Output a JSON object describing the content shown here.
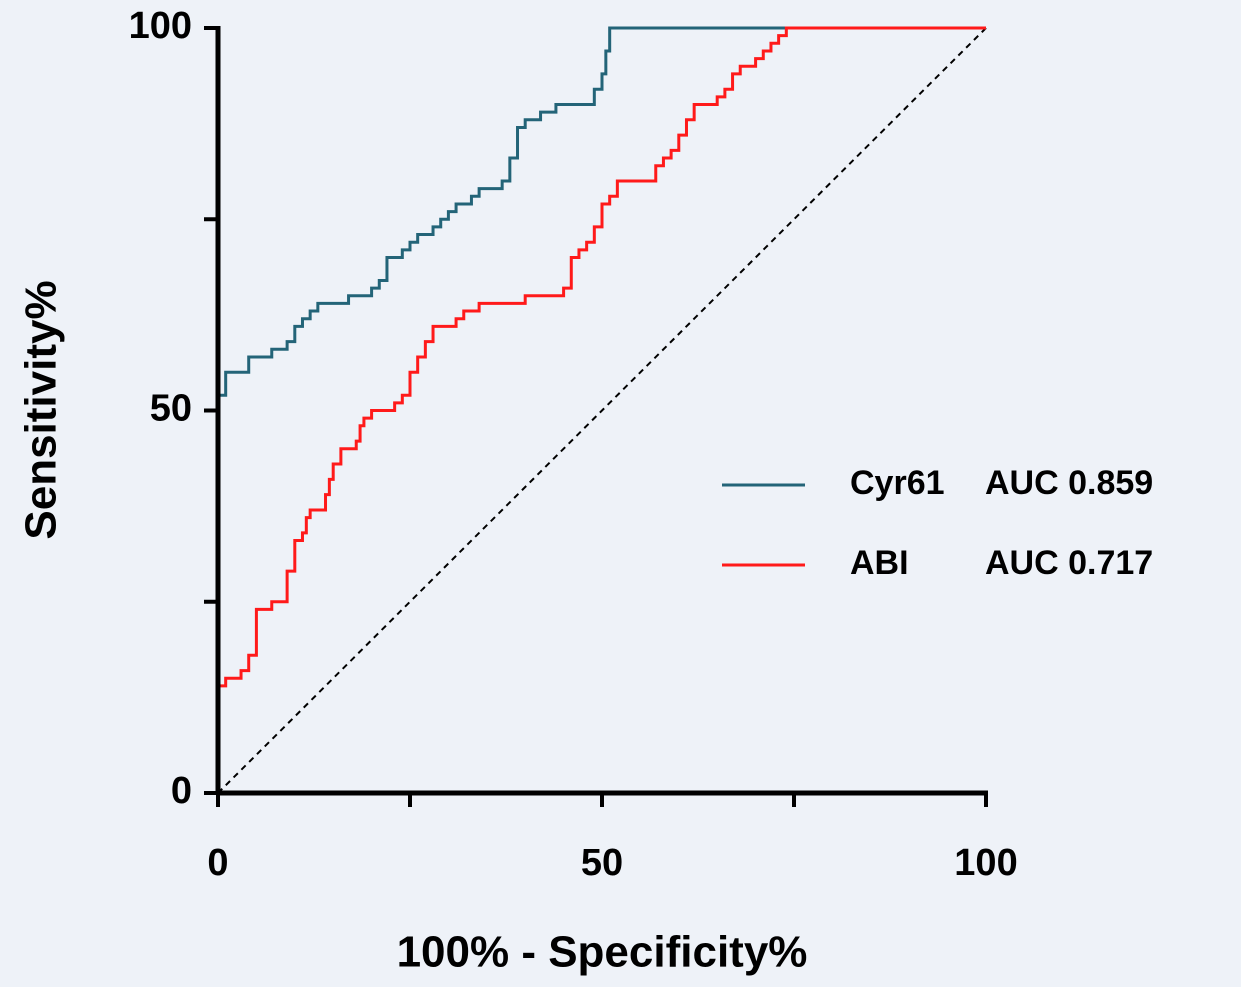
{
  "chart_data": {
    "type": "step-line",
    "x_label": "100% - Specificity%",
    "y_label": "Sensitivity%",
    "xlim": [
      0,
      100
    ],
    "ylim": [
      0,
      100
    ],
    "xticks": [
      0,
      50,
      100
    ],
    "yticks": [
      0,
      50,
      100
    ],
    "x_minor_ticks": [
      25,
      75
    ],
    "y_minor_ticks": [
      25,
      75
    ],
    "reference_line": true,
    "series": [
      {
        "name": "Cyr61",
        "annotation": "AUC 0.859",
        "color": "#236478",
        "x": [
          0,
          0,
          1,
          1,
          4,
          4,
          7,
          7,
          9,
          9,
          10,
          10,
          11,
          11,
          12,
          12,
          13,
          13,
          17,
          17,
          20,
          20,
          21,
          21,
          22,
          22,
          24,
          24,
          25,
          25,
          26,
          26,
          28,
          28,
          29,
          29,
          30,
          30,
          31,
          31,
          33,
          33,
          34,
          34,
          37,
          37,
          38,
          38,
          39,
          39,
          40,
          40,
          42,
          42,
          44,
          44,
          49,
          49,
          50,
          50,
          50.5,
          50.5,
          51,
          51,
          53,
          100
        ],
        "y": [
          0,
          52,
          52,
          55,
          55,
          57,
          57,
          58,
          58,
          59,
          59,
          61,
          61,
          62,
          62,
          63,
          63,
          64,
          64,
          65,
          65,
          66,
          66,
          67,
          67,
          70,
          70,
          71,
          71,
          72,
          72,
          73,
          73,
          74,
          74,
          75,
          75,
          76,
          76,
          77,
          77,
          78,
          78,
          79,
          79,
          80,
          80,
          83,
          83,
          87,
          87,
          88,
          88,
          89,
          89,
          90,
          90,
          92,
          92,
          94,
          94,
          97,
          97,
          100,
          100,
          100
        ]
      },
      {
        "name": "ABI",
        "annotation": "AUC 0.717",
        "color": "#ff1a1a",
        "x": [
          0,
          0,
          1,
          1,
          3,
          3,
          4,
          4,
          5,
          5,
          7,
          7,
          9,
          9,
          10,
          10,
          11,
          11,
          11.5,
          11.5,
          12,
          12,
          14,
          14,
          14.5,
          14.5,
          15,
          15,
          16,
          16,
          18,
          18,
          18.5,
          18.5,
          19,
          19,
          20,
          20,
          23,
          23,
          24,
          24,
          25,
          25,
          26,
          26,
          27,
          27,
          28,
          28,
          31,
          31,
          32,
          32,
          34,
          34,
          40,
          40,
          45,
          45,
          46,
          46,
          47,
          47,
          48,
          48,
          49,
          49,
          50,
          50,
          51,
          51,
          52,
          52,
          57,
          57,
          58,
          58,
          59,
          59,
          60,
          60,
          61,
          61,
          62,
          62,
          65,
          65,
          66,
          66,
          67,
          67,
          68,
          68,
          70,
          70,
          71,
          71,
          72,
          72,
          73,
          73,
          74,
          74,
          76,
          100
        ],
        "y": [
          0,
          14,
          14,
          15,
          15,
          16,
          16,
          18,
          18,
          24,
          24,
          25,
          25,
          29,
          29,
          33,
          33,
          34,
          34,
          36,
          36,
          37,
          37,
          39,
          39,
          41,
          41,
          43,
          43,
          45,
          45,
          46,
          46,
          48,
          48,
          49,
          49,
          50,
          50,
          51,
          51,
          52,
          52,
          55,
          55,
          57,
          57,
          59,
          59,
          61,
          61,
          62,
          62,
          63,
          63,
          64,
          64,
          65,
          65,
          66,
          66,
          70,
          70,
          71,
          71,
          72,
          72,
          74,
          74,
          77,
          77,
          78,
          78,
          80,
          80,
          82,
          82,
          83,
          83,
          84,
          84,
          86,
          86,
          88,
          88,
          90,
          90,
          91,
          91,
          92,
          92,
          94,
          94,
          95,
          95,
          96,
          96,
          97,
          97,
          98,
          98,
          99,
          99,
          100,
          100,
          100
        ]
      }
    ]
  }
}
